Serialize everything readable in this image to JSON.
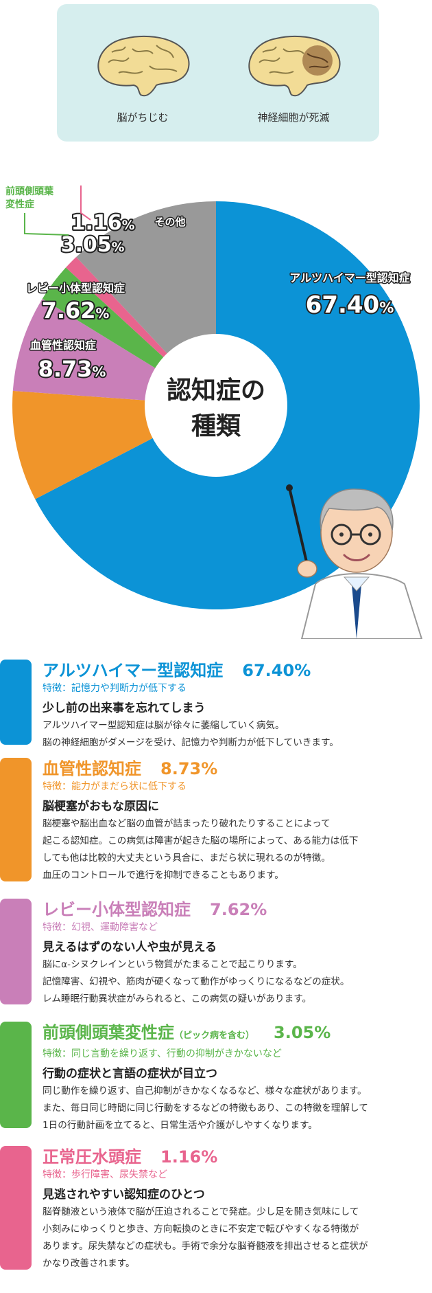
{
  "brains": [
    {
      "caption": "脳がちじむ"
    },
    {
      "caption": "神経細胞が死滅"
    }
  ],
  "chart_data": {
    "type": "pie",
    "center_label_line1": "認知症の",
    "center_label_line2": "種類",
    "slices": [
      {
        "label": "アルツハイマー型認知症",
        "value": 67.4,
        "display": "67.40",
        "color": "#0c93d6"
      },
      {
        "label": "血管性認知症",
        "value": 8.73,
        "display": "8.73",
        "color": "#f0952a"
      },
      {
        "label": "レビー小体型認知症",
        "value": 7.62,
        "display": "7.62",
        "color": "#c97fb8"
      },
      {
        "label": "前頭側頭葉変性症",
        "label_line1": "前頭側頭葉",
        "label_line2": "変性症",
        "value": 3.05,
        "display": "3.05",
        "color": "#5ab54a"
      },
      {
        "label": "正常圧水頭症",
        "value": 1.16,
        "display": "1.16",
        "color": "#e8648e"
      },
      {
        "label": "その他",
        "value": 12.04,
        "display": "",
        "color": "#999999"
      }
    ],
    "percent_sign": "%"
  },
  "cards": [
    {
      "title": "アルツハイマー型認知症",
      "pct": "67.40%",
      "note": "",
      "color": "#0c93d6",
      "feature": "特徴：記憶力や判断力が低下する",
      "heading": "少し前の出来事を忘れてしまう",
      "lines": [
        "アルツハイマー型認知症は脳が徐々に萎縮していく病気。",
        "脳の神経細胞がダメージを受け、記憶力や判断力が低下していきます。"
      ]
    },
    {
      "title": "血管性認知症",
      "pct": "8.73%",
      "note": "",
      "color": "#f0952a",
      "feature": "特徴：能力がまだら状に低下する",
      "heading": "脳梗塞がおもな原因に",
      "lines": [
        "脳梗塞や脳出血など脳の血管が詰まったり破れたりすることによって",
        "起こる認知症。この病気は障害が起きた脳の場所によって、ある能力は低下",
        "しても他は比較的大丈夫という具合に、まだら状に現れるのが特徴。",
        "血圧のコントロールで進行を抑制できることもあります。"
      ]
    },
    {
      "title": "レビー小体型認知症",
      "pct": "7.62%",
      "note": "",
      "color": "#c97fb8",
      "feature": "特徴：幻視、運動障害など",
      "heading": "見えるはずのない人や虫が見える",
      "lines": [
        "脳にα-シヌクレインという物質がたまることで起こりります。",
        "記憶障害、幻視や、筋肉が硬くなって動作がゆっくりになるなどの症状。",
        "レム睡眠行動異状症がみられると、この病気の疑いがあります。"
      ]
    },
    {
      "title": "前頭側頭葉変性症",
      "pct": "3.05%",
      "note": "（ピック病を含む）",
      "color": "#5ab54a",
      "feature": "特徴：同じ言動を繰り返す、行動の抑制がきかないなど",
      "heading": "行動の症状と言語の症状が目立つ",
      "lines": [
        "同じ動作を繰り返す、自己抑制がきかなくなるなど、様々な症状があります。",
        "また、毎日同じ時間に同じ行動をするなどの特徴もあり、この特徴を理解して",
        "1日の行動計画を立てると、日常生活や介護がしやすくなります。"
      ]
    },
    {
      "title": "正常圧水頭症",
      "pct": "1.16%",
      "note": "",
      "color": "#e8648e",
      "feature": "特徴：歩行障害、尿失禁など",
      "heading": "見逃されやすい認知症のひとつ",
      "lines": [
        "脳脊髄液という液体で脳が圧迫されることで発症。少し足を開き気味にして",
        "小刻みにゆっくりと歩き、方向転換のときに不安定で転びやすくなる特徴が",
        "あります。尿失禁などの症状も。手術で余分な脳脊髄液を排出させると症状が",
        "かなり改善されます。"
      ]
    }
  ]
}
